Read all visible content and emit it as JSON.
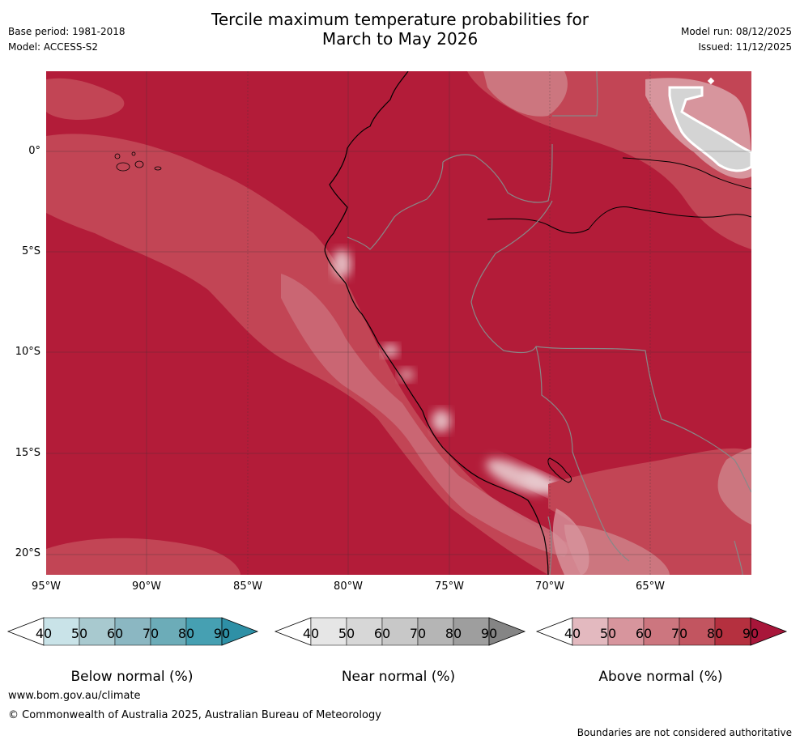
{
  "title": {
    "line1": "Tercile maximum temperature probabilities for",
    "line2": "March to May 2026"
  },
  "meta": {
    "base_period": "Base period: 1981-2018",
    "model": "Model: ACCESS-S2",
    "model_run": "Model run: 08/12/2025",
    "issued": "Issued: 11/12/2025"
  },
  "map": {
    "lat_labels": [
      "0°",
      "5°S",
      "10°S",
      "15°S",
      "20°S"
    ],
    "lon_labels": [
      "95°W",
      "90°W",
      "85°W",
      "80°W",
      "75°W",
      "70°W",
      "65°W"
    ],
    "colors": {
      "ocean_base": "#b31c39",
      "land_base": "#b31c39",
      "coast": "#000000",
      "border": "#888888",
      "grid": "#333333"
    }
  },
  "colorbars": [
    {
      "name": "below",
      "title": "Below normal (%)",
      "ticks": [
        "40",
        "50",
        "60",
        "70",
        "80",
        "90"
      ],
      "colors": [
        "#c9e3e8",
        "#a8c9cf",
        "#8bb7c2",
        "#6cacb8",
        "#46a0b2",
        "#2e90a6"
      ]
    },
    {
      "name": "near",
      "title": "Near normal (%)",
      "ticks": [
        "40",
        "50",
        "60",
        "70",
        "80",
        "90"
      ],
      "colors": [
        "#e6e6e6",
        "#d7d7d7",
        "#c8c8c8",
        "#b5b5b5",
        "#9e9e9e",
        "#858585"
      ]
    },
    {
      "name": "above",
      "title": "Above normal (%)",
      "ticks": [
        "40",
        "50",
        "60",
        "70",
        "80",
        "90"
      ],
      "colors": [
        "#e3b9bf",
        "#d7959d",
        "#cc767f",
        "#c25560",
        "#b5303f",
        "#a8163a"
      ]
    }
  ],
  "footer": {
    "website": "www.bom.gov.au/climate",
    "copyright": "© Commonwealth of Australia 2025, Australian Bureau of Meteorology",
    "disclaimer": "Boundaries are not considered authoritative"
  }
}
